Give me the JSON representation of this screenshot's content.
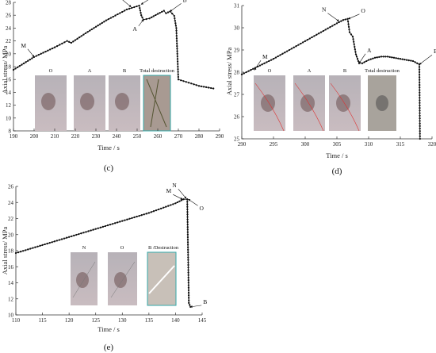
{
  "chart_data": [
    {
      "type": "line",
      "panel_label": "(c)",
      "xlabel": "Time / s",
      "ylabel": "Axial stress/ MPa",
      "xlim": [
        190,
        290
      ],
      "ylim": [
        8,
        28
      ],
      "xticks": [
        "190",
        "200",
        "210",
        "220",
        "230",
        "240",
        "250",
        "260",
        "270",
        "280",
        "290"
      ],
      "yticks": [
        "8",
        "10",
        "12",
        "14",
        "16",
        "18",
        "20",
        "22",
        "24",
        "26",
        "28"
      ],
      "series": [
        {
          "x": [
            190,
            200,
            210,
            216,
            218,
            225,
            235,
            245,
            251,
            252,
            253,
            256,
            260,
            263,
            264,
            266,
            268,
            269,
            270,
            275,
            280,
            287
          ],
          "y": [
            17.5,
            19.5,
            21,
            22,
            21.7,
            23.2,
            25.2,
            26.9,
            27.5,
            26,
            25.3,
            25.5,
            26.2,
            26.7,
            26.3,
            26.6,
            25.9,
            24,
            16,
            15.5,
            15,
            14.6
          ]
        }
      ],
      "annotations": [
        {
          "text": "M",
          "x": 200,
          "y": 19.5
        },
        {
          "text": "N",
          "x": 247,
          "y": 27.3
        },
        {
          "text": "O",
          "x": 252,
          "y": 27.7
        },
        {
          "text": "A",
          "x": 253,
          "y": 25.3
        },
        {
          "text": "B",
          "x": 266,
          "y": 26.6
        }
      ],
      "photos": [
        "O",
        "A",
        "B",
        "Total destruction"
      ]
    },
    {
      "type": "line",
      "panel_label": "(d)",
      "xlabel": "Time / s",
      "ylabel": "Axial stress/ MPa",
      "xlim": [
        290,
        320
      ],
      "ylim": [
        25,
        31
      ],
      "xticks": [
        "290",
        "295",
        "300",
        "305",
        "310",
        "315",
        "320"
      ],
      "yticks": [
        "25",
        "26",
        "27",
        "28",
        "29",
        "30",
        "31"
      ],
      "series": [
        {
          "x": [
            290,
            295,
            300,
            305,
            306,
            306.7,
            307,
            307.5,
            308,
            308.5,
            309,
            310,
            311,
            312,
            313,
            314,
            315,
            316,
            317,
            318,
            318.1
          ],
          "y": [
            27.9,
            28.6,
            29.4,
            30.2,
            30.35,
            30.4,
            29.8,
            29.6,
            28.8,
            28.4,
            28.4,
            28.55,
            28.65,
            28.7,
            28.7,
            28.65,
            28.6,
            28.55,
            28.5,
            28.35,
            25
          ]
        }
      ],
      "annotations": [
        {
          "text": "M",
          "x": 292,
          "y": 28.1
        },
        {
          "text": "N",
          "x": 305.3,
          "y": 30.3
        },
        {
          "text": "O",
          "x": 306.8,
          "y": 30.4
        },
        {
          "text": "A",
          "x": 308.5,
          "y": 28.4
        },
        {
          "text": "B",
          "x": 318,
          "y": 28.35
        }
      ],
      "photos": [
        "O",
        "A",
        "B",
        "Total destruction"
      ]
    },
    {
      "type": "line",
      "panel_label": "(e)",
      "xlabel": "Time / s",
      "ylabel": "Axial stress/ MPa",
      "xlim": [
        110,
        145
      ],
      "ylim": [
        10,
        26
      ],
      "xticks": [
        "110",
        "115",
        "120",
        "125",
        "130",
        "135",
        "140",
        "145"
      ],
      "yticks": [
        "10",
        "12",
        "14",
        "16",
        "18",
        "20",
        "22",
        "24",
        "26"
      ],
      "series": [
        {
          "x": [
            110,
            115,
            120,
            125,
            130,
            135,
            140,
            141.5,
            142.2,
            142.5,
            142.8
          ],
          "y": [
            17.7,
            18.7,
            19.7,
            20.7,
            21.7,
            22.7,
            23.9,
            24.4,
            24.4,
            11.5,
            11
          ]
        }
      ],
      "annotations": [
        {
          "text": "M",
          "x": 141.3,
          "y": 24.4
        },
        {
          "text": "N",
          "x": 142,
          "y": 24.5
        },
        {
          "text": "O",
          "x": 142.4,
          "y": 24.4
        },
        {
          "text": "B",
          "x": 142.8,
          "y": 11
        }
      ],
      "photos": [
        "N",
        "O",
        "B /Destruction"
      ]
    }
  ]
}
